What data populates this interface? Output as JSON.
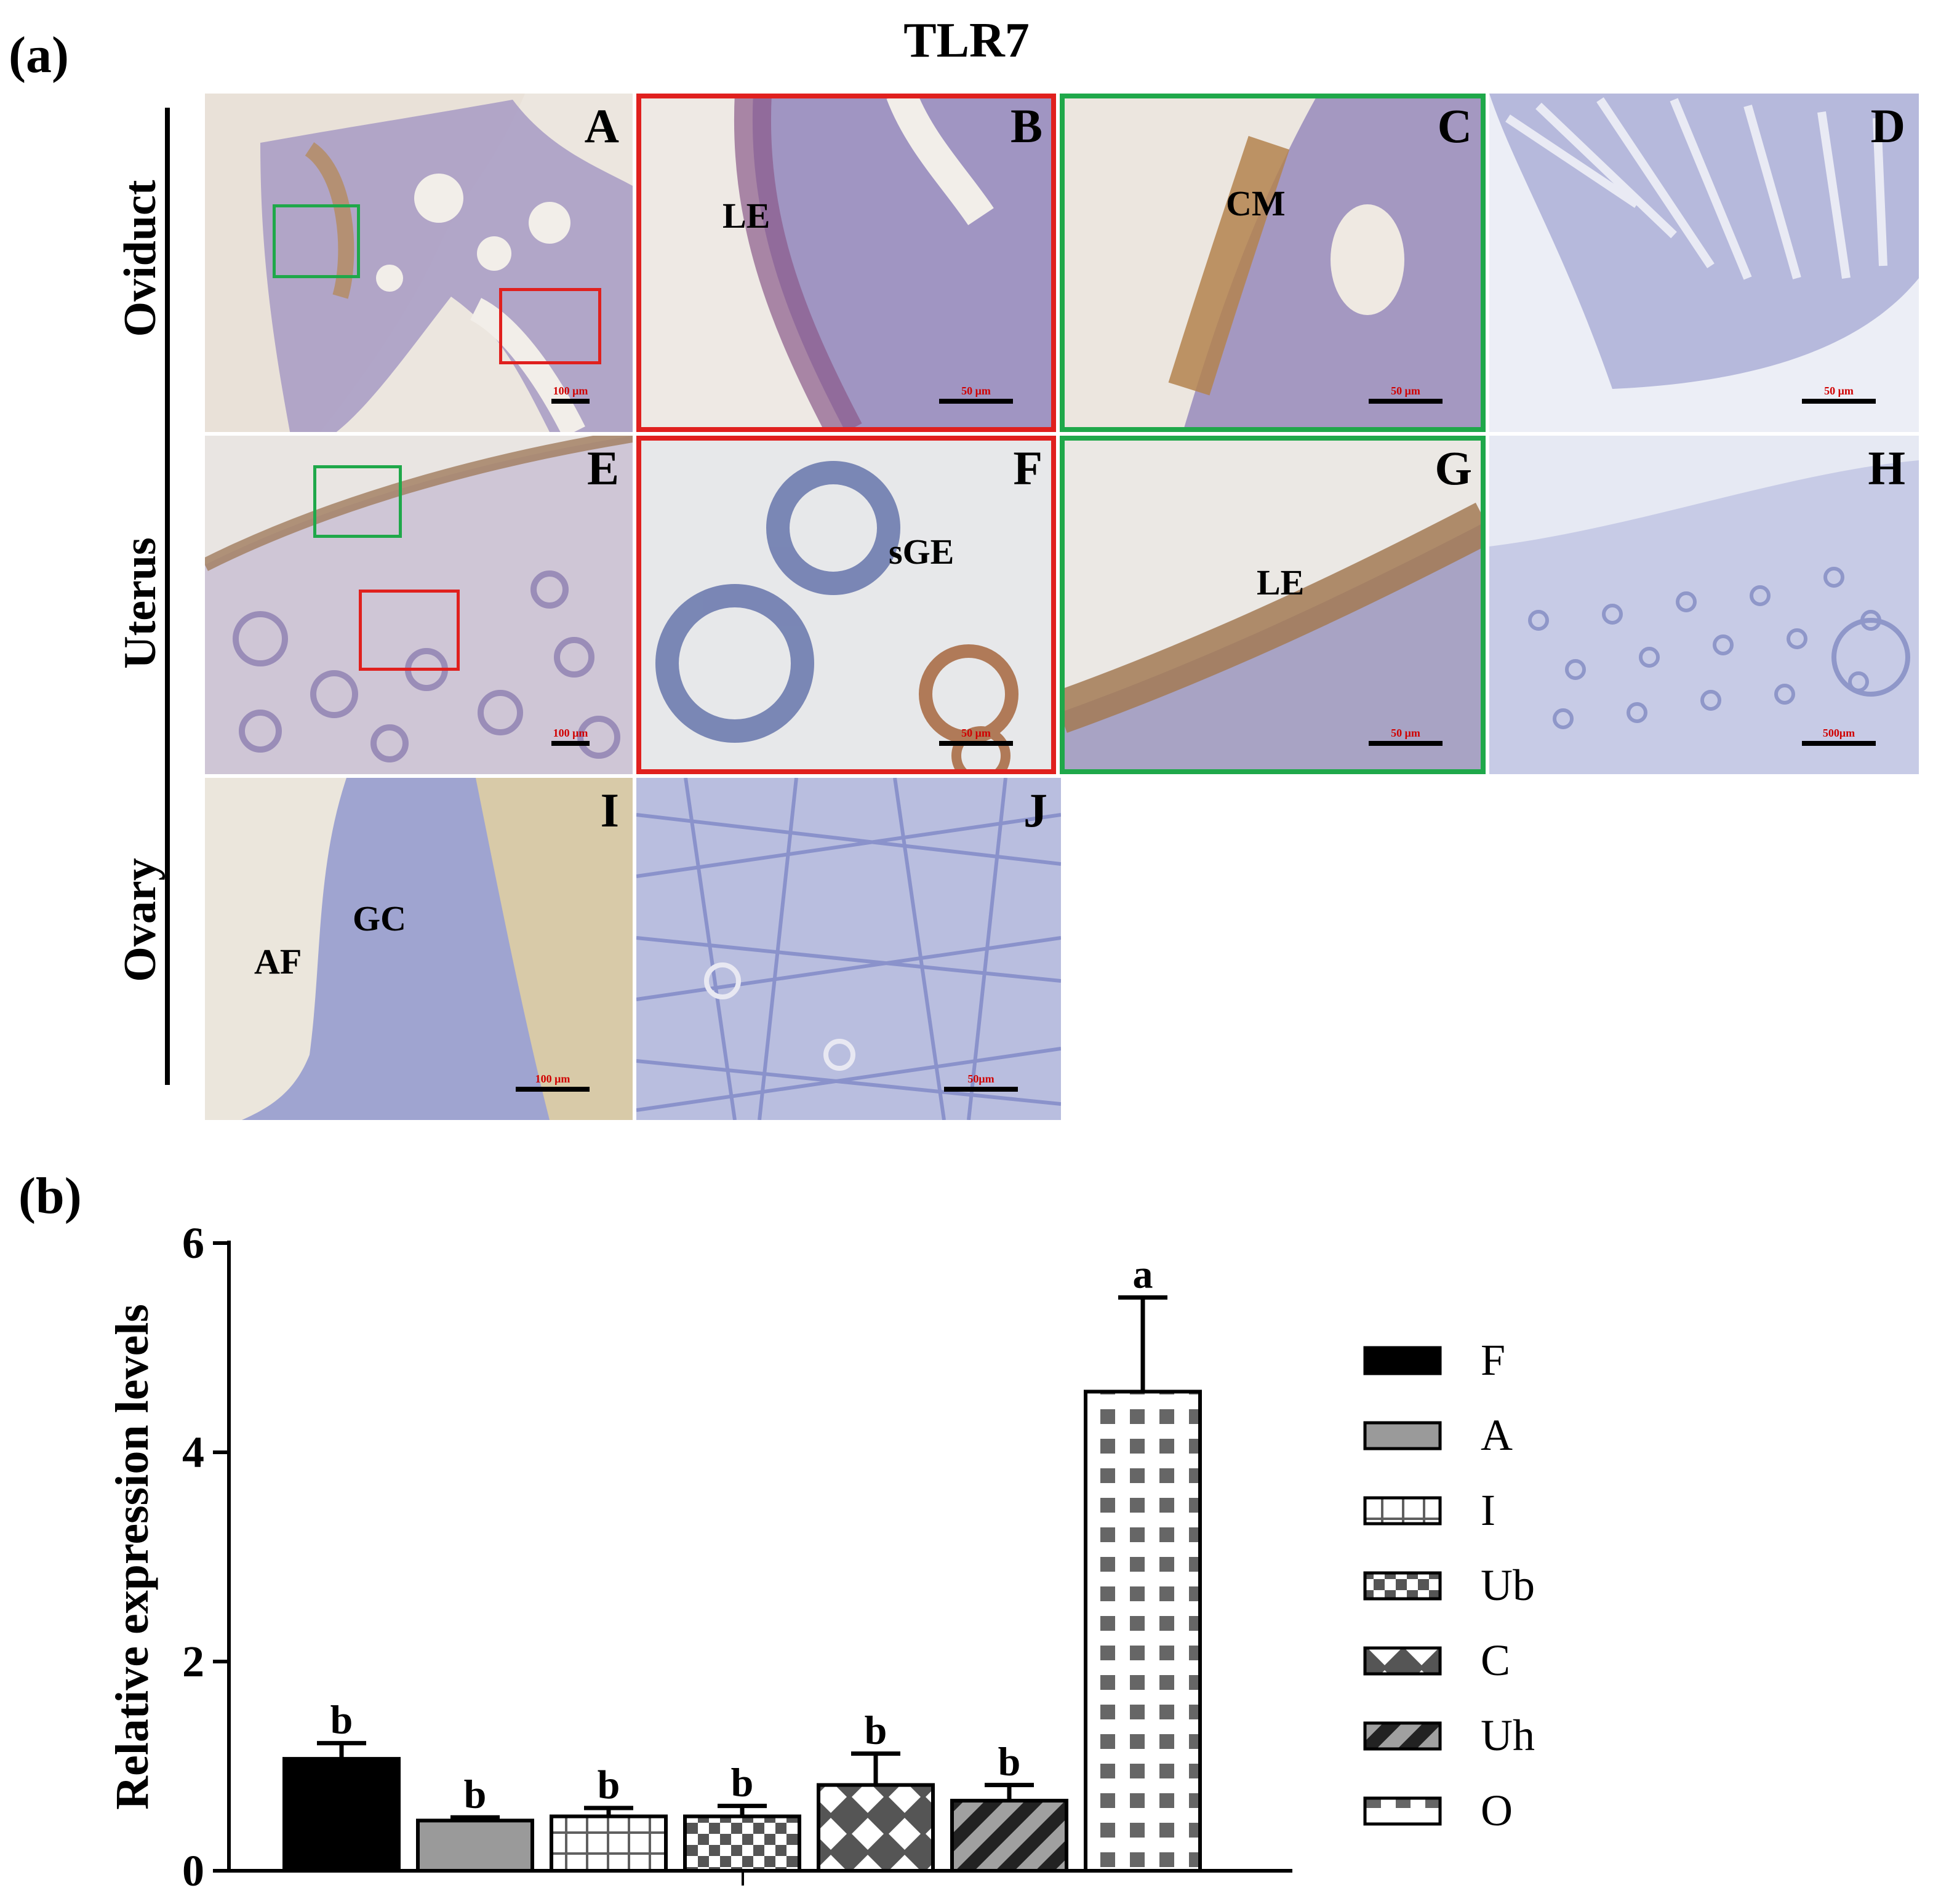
{
  "figure": {
    "part_a_label": "(a)",
    "part_b_label": "(b)",
    "title": "TLR7",
    "row_labels": [
      "Oviduct",
      "Uterus",
      "Ovary"
    ],
    "frame_colors": {
      "red": "#e0201e",
      "green": "#1fa84a"
    },
    "panels": [
      {
        "id": "A",
        "letter": "A",
        "labels": [],
        "scale": "100 μm",
        "bg": "#ece6df"
      },
      {
        "id": "B",
        "letter": "B",
        "labels": [
          "LE"
        ],
        "scale": "50 μm",
        "bg": "#eee9e4",
        "frame": "red"
      },
      {
        "id": "C",
        "letter": "C",
        "labels": [
          "CM"
        ],
        "scale": "50 μm",
        "bg": "#ece6df",
        "frame": "green"
      },
      {
        "id": "D",
        "letter": "D",
        "labels": [],
        "scale": "50 μm",
        "bg": "#eceef6"
      },
      {
        "id": "E",
        "letter": "E",
        "labels": [],
        "scale": "100 μm",
        "bg": "#e9e5e2"
      },
      {
        "id": "F",
        "letter": "F",
        "labels": [
          "sGE"
        ],
        "scale": "50 μm",
        "bg": "#e7e8ea",
        "frame": "red"
      },
      {
        "id": "G",
        "letter": "G",
        "labels": [
          "LE"
        ],
        "scale": "50 μm",
        "bg": "#ebe8e4",
        "frame": "green"
      },
      {
        "id": "H",
        "letter": "H",
        "labels": [],
        "scale": "500μm",
        "bg": "#e6e9f3"
      },
      {
        "id": "I",
        "letter": "I",
        "labels": [
          "AF",
          "GC"
        ],
        "scale": "100 μm",
        "bg": "#ebe6dc"
      },
      {
        "id": "J",
        "letter": "J",
        "labels": [],
        "scale": "50μm",
        "bg": "#b9bedf"
      }
    ]
  },
  "chart_data": {
    "type": "bar",
    "categories": [
      "F",
      "A",
      "I",
      "Ub",
      "C",
      "Uh",
      "O"
    ],
    "values": [
      1.07,
      0.48,
      0.52,
      0.52,
      0.82,
      0.67,
      4.58
    ],
    "errors": [
      0.15,
      0.03,
      0.08,
      0.1,
      0.3,
      0.15,
      0.9
    ],
    "significance": [
      "b",
      "b",
      "b",
      "b",
      "b",
      "b",
      "a"
    ],
    "ylabel": "Relative expression levels",
    "ylim": [
      0,
      6
    ],
    "yticks": [
      0,
      2,
      4,
      6
    ],
    "legend": [
      "F",
      "A",
      "I",
      "Ub",
      "C",
      "Uh",
      "O"
    ],
    "legend_position": "right",
    "patterns": [
      "solid-black",
      "solid-gray",
      "grid",
      "checker",
      "diamond",
      "diagonal",
      "squares"
    ],
    "grid": false
  }
}
